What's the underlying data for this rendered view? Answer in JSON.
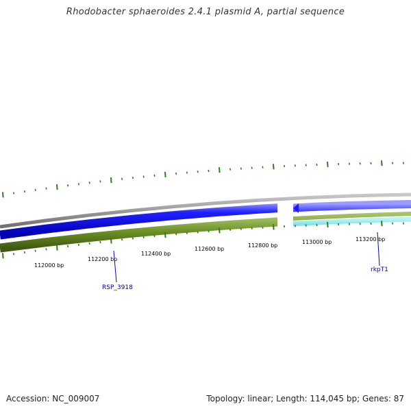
{
  "title": "Rhodobacter sphaeroides 2.4.1 plasmid A, partial sequence",
  "accession_label": "Accession: NC_009007",
  "summary_label": "Topology: linear; Length: 114,045 bp; Genes: 87",
  "scale": {
    "tick_labels": [
      "112000 bp",
      "112200 bp",
      "112400 bp",
      "112600 bp",
      "112800 bp",
      "113000 bp",
      "113200 bp"
    ]
  },
  "gene_labels": [
    "RSP_3918",
    "rkpT1"
  ],
  "colors": {
    "backbone": "#8a8a8a",
    "gene_forward": "#0000ee",
    "cds": "#6b8e23",
    "misc_feature": "#20c0c8",
    "ticks": "#2e7d1e",
    "gene_label": "#0000aa"
  }
}
